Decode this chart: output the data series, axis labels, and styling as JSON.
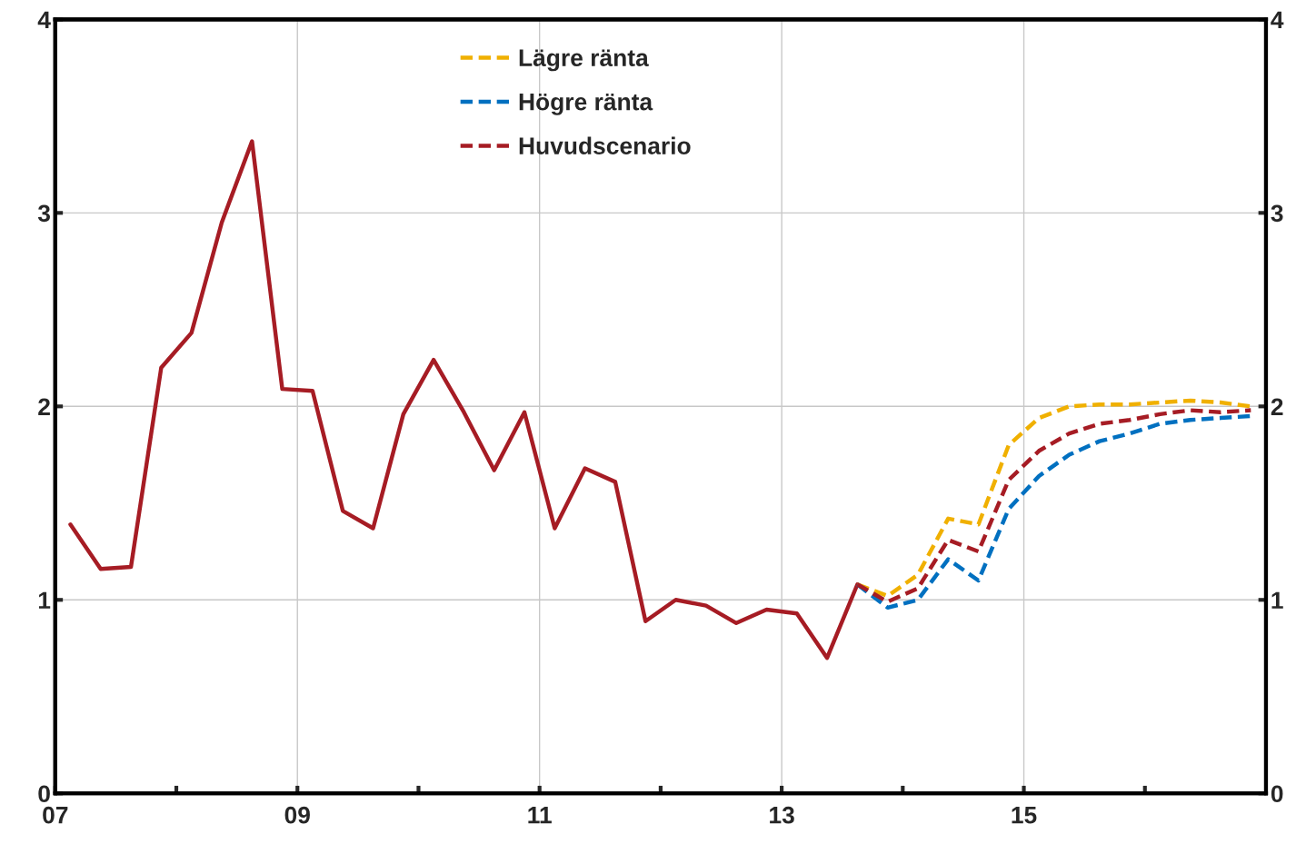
{
  "chart_data": {
    "type": "line",
    "xlim": [
      2007,
      2017
    ],
    "xticks": [
      {
        "value": 2007,
        "label": "07"
      },
      {
        "value": 2008,
        "label": null
      },
      {
        "value": 2009,
        "label": "09"
      },
      {
        "value": 2010,
        "label": null
      },
      {
        "value": 2011,
        "label": "11"
      },
      {
        "value": 2012,
        "label": null
      },
      {
        "value": 2013,
        "label": "13"
      },
      {
        "value": 2014,
        "label": null
      },
      {
        "value": 2015,
        "label": "15"
      },
      {
        "value": 2016,
        "label": null
      }
    ],
    "ylim": [
      0,
      4
    ],
    "yticks": [
      0,
      1,
      2,
      3,
      4
    ],
    "y2lim": [
      0,
      4
    ],
    "y2ticks": [
      0,
      1,
      2,
      3,
      4
    ],
    "grid": true,
    "legend": "top",
    "series": [
      {
        "color": "#a61c24",
        "line_style": "solid",
        "x": [
          2007.125,
          2007.375,
          2007.625,
          2007.875,
          2008.125,
          2008.375,
          2008.625,
          2008.875,
          2009.125,
          2009.375,
          2009.625,
          2009.875,
          2010.125,
          2010.375,
          2010.625,
          2010.875,
          2011.125,
          2011.375,
          2011.625,
          2011.875,
          2012.125,
          2012.375,
          2012.625,
          2012.875,
          2013.125,
          2013.375,
          2013.625
        ],
        "values": [
          1.39,
          1.16,
          1.17,
          2.2,
          2.38,
          2.95,
          3.37,
          2.09,
          2.08,
          1.46,
          1.37,
          1.96,
          2.24,
          1.97,
          1.67,
          1.97,
          1.37,
          1.68,
          1.61,
          0.89,
          1.0,
          0.97,
          0.88,
          0.95,
          0.93,
          0.7,
          1.08
        ]
      },
      {
        "name": "Lägre ränta",
        "color": "#f0b000",
        "line_style": "dashed",
        "x": [
          2013.625,
          2013.875,
          2014.125,
          2014.375,
          2014.625,
          2014.875,
          2015.125,
          2015.375,
          2015.625,
          2015.875,
          2016.125,
          2016.375,
          2016.625,
          2016.875
        ],
        "values": [
          1.08,
          1.02,
          1.13,
          1.42,
          1.39,
          1.8,
          1.94,
          2.0,
          2.01,
          2.01,
          2.02,
          2.03,
          2.02,
          2.0
        ]
      },
      {
        "name": "Högre ränta",
        "color": "#0070c0",
        "line_style": "dashed",
        "x": [
          2013.625,
          2013.875,
          2014.125,
          2014.375,
          2014.625,
          2014.875,
          2015.125,
          2015.375,
          2015.625,
          2015.875,
          2016.125,
          2016.375,
          2016.625,
          2016.875
        ],
        "values": [
          1.08,
          0.96,
          1.0,
          1.21,
          1.1,
          1.47,
          1.64,
          1.75,
          1.82,
          1.86,
          1.91,
          1.93,
          1.94,
          1.95
        ]
      },
      {
        "name": "Huvudscenario",
        "color": "#a61c24",
        "line_style": "dashed",
        "x": [
          2013.625,
          2013.875,
          2014.125,
          2014.375,
          2014.625,
          2014.875,
          2015.125,
          2015.375,
          2015.625,
          2015.875,
          2016.125,
          2016.375,
          2016.625,
          2016.875
        ],
        "values": [
          1.08,
          0.99,
          1.06,
          1.31,
          1.25,
          1.62,
          1.77,
          1.86,
          1.91,
          1.93,
          1.96,
          1.98,
          1.97,
          1.98
        ]
      }
    ]
  }
}
